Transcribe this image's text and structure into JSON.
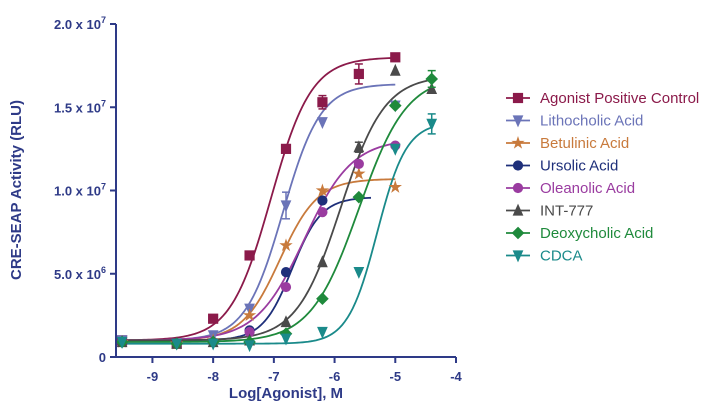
{
  "chart_data": {
    "type": "scatter",
    "xlabel": "Log[Agonist], M",
    "ylabel": "CRE-SEAP Activity (RLU)",
    "xlim": [
      -9.6,
      -4
    ],
    "ylim": [
      0,
      20000000
    ],
    "xticks": [
      {
        "value": -9,
        "label": "-9"
      },
      {
        "value": -8,
        "label": "-8"
      },
      {
        "value": -7,
        "label": "-7"
      },
      {
        "value": -6,
        "label": "-6"
      },
      {
        "value": -5,
        "label": "-5"
      },
      {
        "value": -4,
        "label": "-4"
      }
    ],
    "yticks": [
      {
        "value": 0,
        "mant": "0",
        "exp": ""
      },
      {
        "value": 5000000,
        "mant": "5.0 x 10",
        "exp": "6"
      },
      {
        "value": 10000000,
        "mant": "1.0 x 10",
        "exp": "7"
      },
      {
        "value": 15000000,
        "mant": "1.5 x 10",
        "exp": "7"
      },
      {
        "value": 20000000,
        "mant": "2.0 x 10",
        "exp": "7"
      }
    ],
    "grid": false,
    "legend_position": "right",
    "series": [
      {
        "name": "Agonist Positive Control",
        "color": "#8b1a4a",
        "marker": "square",
        "x": [
          -9.5,
          -8.6,
          -8.0,
          -7.4,
          -6.8,
          -6.2,
          -5.6,
          -5.0
        ],
        "y": [
          1000000,
          800000,
          2300000,
          6100000,
          12500000,
          15300000,
          17000000,
          18000000
        ],
        "err": [
          0,
          0,
          0,
          0,
          0,
          400000,
          600000,
          0
        ]
      },
      {
        "name": "Lithocholic Acid",
        "color": "#6b74b8",
        "marker": "triangle-down",
        "x": [
          -9.5,
          -8.6,
          -8.0,
          -7.4,
          -6.8,
          -6.2,
          -5.0
        ],
        "y": [
          1000000,
          800000,
          1300000,
          2900000,
          9100000,
          14100000,
          15100000
        ],
        "err": [
          0,
          0,
          0,
          0,
          800000,
          0,
          0
        ]
      },
      {
        "name": "Betulinic Acid",
        "color": "#c87a3c",
        "marker": "star",
        "x": [
          -9.5,
          -8.6,
          -8.0,
          -7.4,
          -6.8,
          -6.2,
          -5.6,
          -5.0
        ],
        "y": [
          900000,
          800000,
          1000000,
          2500000,
          6700000,
          10000000,
          11000000,
          10200000
        ],
        "err": [
          0,
          0,
          0,
          0,
          0,
          0,
          0,
          0
        ]
      },
      {
        "name": "Ursolic Acid",
        "color": "#1e2f7a",
        "marker": "circle",
        "x": [
          -9.5,
          -8.6,
          -8.0,
          -7.4,
          -6.8,
          -6.2
        ],
        "y": [
          900000,
          800000,
          900000,
          1600000,
          5100000,
          9400000
        ],
        "err": [
          0,
          0,
          0,
          0,
          0,
          0
        ]
      },
      {
        "name": "Oleanolic Acid",
        "color": "#9a3ca0",
        "marker": "circle",
        "x": [
          -9.5,
          -8.6,
          -8.0,
          -7.4,
          -6.8,
          -6.2,
          -5.6,
          -5.0
        ],
        "y": [
          900000,
          800000,
          900000,
          1500000,
          4200000,
          8700000,
          11600000,
          12700000
        ],
        "err": [
          0,
          0,
          0,
          0,
          0,
          0,
          0,
          0
        ]
      },
      {
        "name": "INT-777",
        "color": "#4a4a4a",
        "marker": "triangle-up",
        "x": [
          -9.5,
          -8.6,
          -8.0,
          -7.4,
          -6.8,
          -6.2,
          -5.6,
          -5.0,
          -4.4
        ],
        "y": [
          900000,
          800000,
          900000,
          1000000,
          2100000,
          5700000,
          12600000,
          17200000,
          16100000
        ],
        "err": [
          0,
          0,
          0,
          0,
          0,
          0,
          300000,
          0,
          0
        ]
      },
      {
        "name": "Deoxycholic Acid",
        "color": "#1f8a3c",
        "marker": "diamond",
        "x": [
          -9.5,
          -8.6,
          -8.0,
          -7.4,
          -6.8,
          -6.2,
          -5.6,
          -5.0,
          -4.4
        ],
        "y": [
          900000,
          800000,
          900000,
          900000,
          1400000,
          3500000,
          9600000,
          15100000,
          16700000
        ],
        "err": [
          0,
          0,
          0,
          0,
          0,
          0,
          0,
          0,
          500000
        ]
      },
      {
        "name": "CDCA",
        "color": "#1a8a8a",
        "marker": "triangle-down",
        "x": [
          -9.5,
          -8.6,
          -8.0,
          -7.4,
          -6.8,
          -6.2,
          -5.6,
          -5.0,
          -4.4
        ],
        "y": [
          900000,
          800000,
          800000,
          700000,
          1100000,
          1500000,
          5100000,
          12500000,
          14000000
        ],
        "err": [
          0,
          0,
          0,
          0,
          0,
          0,
          0,
          0,
          600000
        ]
      }
    ],
    "fits": [
      {
        "bottom": 1000000,
        "top": 18000000,
        "logec50": -7.05,
        "hill": 1.3,
        "xmin": -9.6,
        "xmax": -5.0
      },
      {
        "bottom": 1000000,
        "top": 16400000,
        "logec50": -6.85,
        "hill": 1.4,
        "xmin": -9.6,
        "xmax": -5.0
      },
      {
        "bottom": 1000000,
        "top": 10700000,
        "logec50": -6.9,
        "hill": 1.4,
        "xmin": -9.6,
        "xmax": -5.0
      },
      {
        "bottom": 1000000,
        "top": 9600000,
        "logec50": -6.7,
        "hill": 1.8,
        "xmin": -9.6,
        "xmax": -5.4
      },
      {
        "bottom": 1000000,
        "top": 13100000,
        "logec50": -6.5,
        "hill": 1.1,
        "xmin": -9.6,
        "xmax": -5.0
      },
      {
        "bottom": 1000000,
        "top": 16900000,
        "logec50": -5.9,
        "hill": 1.2,
        "xmin": -9.6,
        "xmax": -4.4
      },
      {
        "bottom": 900000,
        "top": 16900000,
        "logec50": -5.6,
        "hill": 1.1,
        "xmin": -9.6,
        "xmax": -4.4
      },
      {
        "bottom": 800000,
        "top": 14100000,
        "logec50": -5.3,
        "hill": 1.8,
        "xmin": -9.6,
        "xmax": -4.4
      }
    ]
  }
}
